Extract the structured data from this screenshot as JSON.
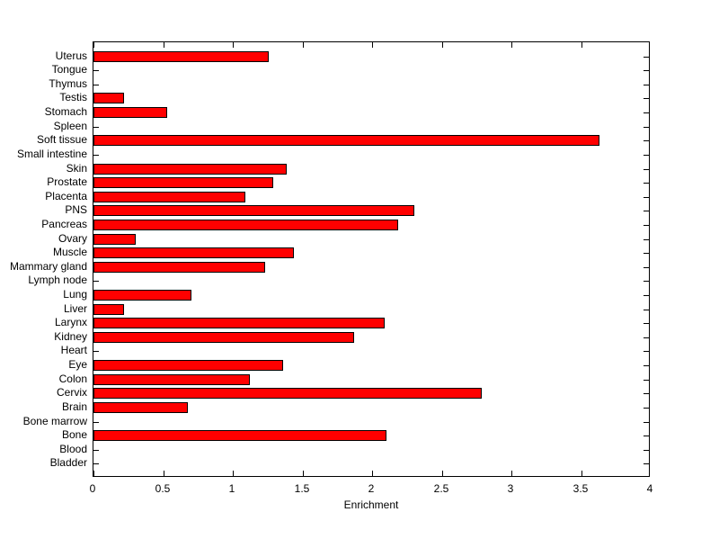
{
  "figure": {
    "background": "#ffffff",
    "axis_color": "#000000",
    "text_color": "#000000"
  },
  "chart_data": {
    "type": "bar",
    "orientation": "horizontal",
    "title": "",
    "xlabel": "Enrichment",
    "ylabel": "",
    "xlim": [
      0,
      4
    ],
    "xticks": [
      0,
      0.5,
      1,
      1.5,
      2,
      2.5,
      3,
      3.5,
      4
    ],
    "xtick_labels": [
      "0",
      "0.5",
      "1",
      "1.5",
      "2",
      "2.5",
      "3",
      "3.5",
      "4"
    ],
    "grid": false,
    "legend": null,
    "bar_color": "#ff0000",
    "bar_edge_color": "#000000",
    "categories_top_to_bottom": true,
    "categories": [
      "Uterus",
      "Tongue",
      "Thymus",
      "Testis",
      "Stomach",
      "Spleen",
      "Soft tissue",
      "Small intestine",
      "Skin",
      "Prostate",
      "Placenta",
      "PNS",
      "Pancreas",
      "Ovary",
      "Muscle",
      "Mammary gland",
      "Lymph node",
      "Lung",
      "Liver",
      "Larynx",
      "Kidney",
      "Heart",
      "Eye",
      "Colon",
      "Cervix",
      "Brain",
      "Bone marrow",
      "Bone",
      "Blood",
      "Bladder"
    ],
    "values": [
      1.26,
      0,
      0,
      0.22,
      0.53,
      0,
      3.63,
      0,
      1.39,
      1.29,
      1.09,
      2.3,
      2.19,
      0.3,
      1.44,
      1.23,
      0,
      0.7,
      0.22,
      2.09,
      1.87,
      0,
      1.36,
      1.12,
      2.79,
      0.68,
      0,
      2.1,
      0,
      0
    ]
  }
}
